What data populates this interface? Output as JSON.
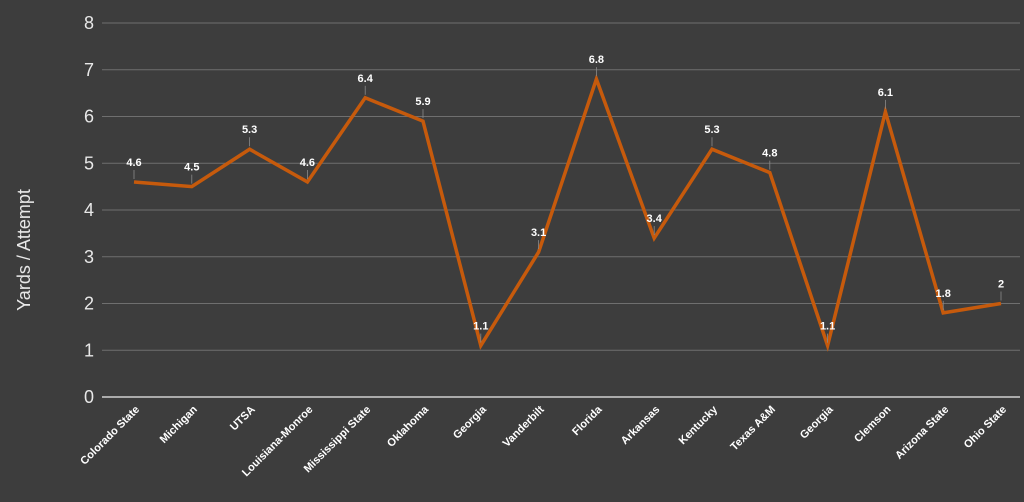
{
  "chart_data": {
    "type": "line",
    "title": "",
    "xlabel": "",
    "ylabel": "Yards / Attempt",
    "ylim": [
      0,
      8
    ],
    "yticks": [
      0,
      1,
      2,
      3,
      4,
      5,
      6,
      7,
      8
    ],
    "grid": true,
    "categories": [
      "Colorado State",
      "Michigan",
      "UTSA",
      "Louisiana-Monroe",
      "Mississippi State",
      "Oklahoma",
      "Georgia",
      "Vanderbilt",
      "Florida",
      "Arkansas",
      "Kentucky",
      "Texas A&M",
      "Georgia",
      "Clemson",
      "Arizona State",
      "Ohio State"
    ],
    "series": [
      {
        "values": [
          4.6,
          4.5,
          5.3,
          4.6,
          6.4,
          5.9,
          1.1,
          3.1,
          6.8,
          3.4,
          5.3,
          4.8,
          1.1,
          6.1,
          1.8,
          2
        ],
        "labels": [
          "4.6",
          "4.5",
          "5.3",
          "4.6",
          "6.4",
          "5.9",
          "1.1",
          "3.1",
          "6.8",
          "3.4",
          "5.3",
          "4.8",
          "1.1",
          "6.1",
          "1.8",
          "2"
        ]
      }
    ],
    "colors": {
      "background": "#3d3d3d",
      "line": "#c65a0c",
      "grid": "#6f6f6f",
      "text": "#e8e8e8"
    }
  }
}
